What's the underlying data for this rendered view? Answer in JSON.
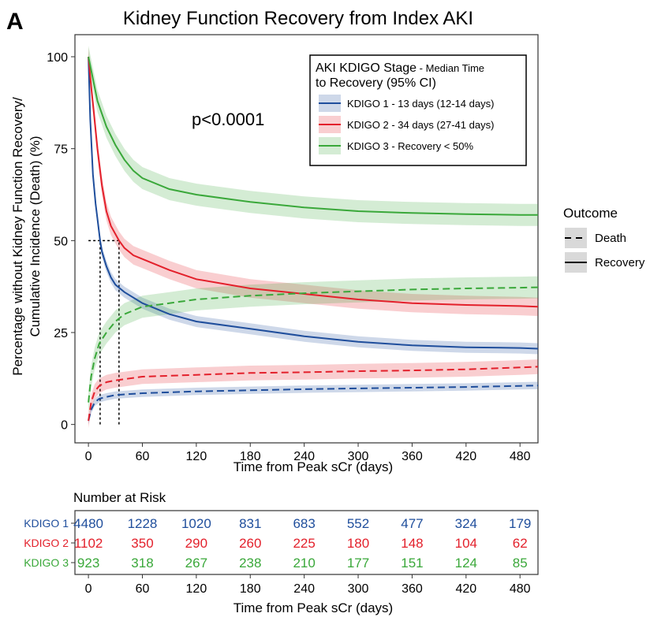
{
  "panel_letter": "A",
  "chart_data": {
    "type": "line",
    "title": "Kidney Function Recovery from Index AKI",
    "xlabel": "Time from Peak sCr (days)",
    "ylabel_line1": "Percentage without Kidney Function Recovery/",
    "ylabel_line2": "Cumulative Incidence (Death) (%)",
    "xlim": [
      -15,
      500
    ],
    "ylim": [
      -5,
      106
    ],
    "x_ticks": [
      0,
      60,
      120,
      180,
      240,
      300,
      360,
      420,
      480
    ],
    "y_ticks": [
      0,
      25,
      50,
      75,
      100
    ],
    "annotation": "p<0.0001",
    "reference_lines": [
      {
        "x": [
          0,
          34
        ],
        "y": [
          50,
          50
        ]
      },
      {
        "x": [
          13,
          13
        ],
        "y": [
          0,
          50
        ]
      },
      {
        "x": [
          34,
          34
        ],
        "y": [
          0,
          50
        ]
      }
    ],
    "legend": {
      "title_main": "AKI KDIGO Stage",
      "title_small": " - Median Time",
      "title_line2": "to Recovery (95% CI)",
      "entries": [
        {
          "label": "KDIGO 1 - 13 days (12-14 days)",
          "color": "#1f4e9c"
        },
        {
          "label": "KDIGO 2 - 34 days (27-41 days)",
          "color": "#e3202b"
        },
        {
          "label": "KDIGO 3 - Recovery < 50%",
          "color": "#3aa83a"
        }
      ]
    },
    "outcome_legend": {
      "title": "Outcome",
      "entries": [
        {
          "label": "Death",
          "style": "dashed"
        },
        {
          "label": "Recovery",
          "style": "solid"
        }
      ]
    },
    "series": [
      {
        "group": "KDIGO 1",
        "outcome": "Recovery",
        "color": "#1f4e9c",
        "ci_width": 1.5,
        "x": [
          0,
          2,
          5,
          8,
          10,
          13,
          15,
          20,
          25,
          30,
          40,
          60,
          90,
          120,
          180,
          240,
          300,
          360,
          420,
          480,
          500
        ],
        "y": [
          100,
          83,
          68,
          60,
          56,
          50,
          47,
          43,
          40,
          38,
          36,
          33,
          30,
          28,
          26,
          24,
          22.5,
          21.5,
          21,
          20.8,
          20.6
        ]
      },
      {
        "group": "KDIGO 2",
        "outcome": "Recovery",
        "color": "#e3202b",
        "ci_width": 2.5,
        "x": [
          0,
          3,
          6,
          10,
          15,
          20,
          25,
          34,
          40,
          50,
          60,
          90,
          120,
          180,
          240,
          300,
          360,
          420,
          480,
          500
        ],
        "y": [
          100,
          92,
          85,
          75,
          65,
          58,
          54,
          50,
          48,
          46,
          45,
          42,
          39.5,
          37,
          35.5,
          34,
          33,
          32.5,
          32.2,
          32
        ]
      },
      {
        "group": "KDIGO 3",
        "outcome": "Recovery",
        "color": "#3aa83a",
        "ci_width": 3,
        "x": [
          0,
          5,
          10,
          20,
          30,
          40,
          50,
          60,
          90,
          120,
          180,
          240,
          300,
          360,
          420,
          480,
          500
        ],
        "y": [
          100,
          94,
          88,
          81,
          76,
          72,
          69,
          67,
          64,
          62.5,
          60.5,
          59,
          58,
          57.5,
          57.2,
          57,
          57
        ]
      },
      {
        "group": "KDIGO 1",
        "outcome": "Death",
        "color": "#1f4e9c",
        "ci_width": 1,
        "x": [
          0,
          3,
          7,
          12,
          20,
          30,
          60,
          120,
          180,
          240,
          300,
          360,
          420,
          480,
          500
        ],
        "y": [
          1,
          4,
          6,
          7,
          7.5,
          8,
          8.5,
          9,
          9.3,
          9.6,
          9.8,
          10,
          10.2,
          10.5,
          10.6
        ]
      },
      {
        "group": "KDIGO 2",
        "outcome": "Death",
        "color": "#e3202b",
        "ci_width": 2,
        "x": [
          0,
          3,
          7,
          12,
          20,
          30,
          60,
          120,
          180,
          240,
          300,
          360,
          420,
          480,
          500
        ],
        "y": [
          1,
          6,
          9,
          10.5,
          11.5,
          12,
          13,
          13.5,
          14,
          14.2,
          14.5,
          14.7,
          15,
          15.5,
          15.7
        ]
      },
      {
        "group": "KDIGO 3",
        "outcome": "Death",
        "color": "#3aa83a",
        "ci_width": 3,
        "x": [
          0,
          3,
          7,
          12,
          20,
          30,
          40,
          60,
          90,
          120,
          180,
          240,
          300,
          360,
          420,
          480,
          500
        ],
        "y": [
          6,
          13,
          18,
          22,
          25,
          28,
          30,
          32,
          33,
          34,
          35,
          35.7,
          36.2,
          36.7,
          37,
          37.2,
          37.3
        ]
      }
    ]
  },
  "risk_table": {
    "title": "Number at Risk",
    "xlabel": "Time from Peak sCr (days)",
    "x_ticks": [
      0,
      60,
      120,
      180,
      240,
      300,
      360,
      420,
      480
    ],
    "rows": [
      {
        "label": "KDIGO 1",
        "color": "#1f4e9c",
        "values": [
          4480,
          1228,
          1020,
          831,
          683,
          552,
          477,
          324,
          179
        ]
      },
      {
        "label": "KDIGO 2",
        "color": "#e3202b",
        "values": [
          1102,
          350,
          290,
          260,
          225,
          180,
          148,
          104,
          62
        ]
      },
      {
        "label": "KDIGO 3",
        "color": "#3aa83a",
        "values": [
          923,
          318,
          267,
          238,
          210,
          177,
          151,
          124,
          85
        ]
      }
    ]
  }
}
